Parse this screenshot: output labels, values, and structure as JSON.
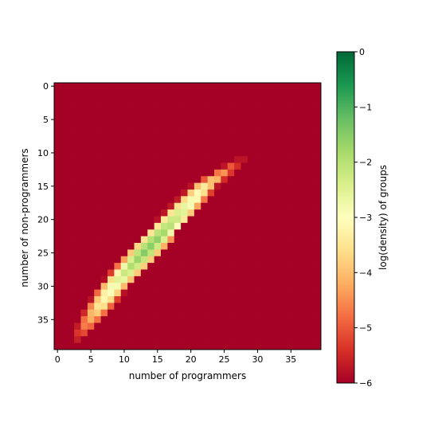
{
  "chart_data": {
    "type": "heatmap",
    "xlabel": "number of programmers",
    "ylabel": "number of non-programmers",
    "colorbar_label": "log(density) of groups",
    "xlim": [
      -0.5,
      39.5
    ],
    "ylim": [
      39.5,
      -0.5
    ],
    "y_inverted": true,
    "x_ticks": [
      0,
      5,
      10,
      15,
      20,
      25,
      30,
      35
    ],
    "y_ticks": [
      0,
      5,
      10,
      15,
      20,
      25,
      30,
      35
    ],
    "colorbar_range": [
      -6,
      0
    ],
    "colorbar_ticks": [
      0,
      -1,
      -2,
      -3,
      -4,
      -5,
      -6
    ],
    "colorbar_tick_labels": [
      "0",
      "−1",
      "−2",
      "−3",
      "−4",
      "−5",
      "−6"
    ],
    "colormap": "RdYlGn",
    "floor_value": -6,
    "ridge": {
      "description": "nonzero cells lie on band of rows y=11..38",
      "center_x_by_row": [
        [
          11,
          26.5
        ],
        [
          15,
          21.0
        ],
        [
          20,
          16.5
        ],
        [
          25,
          12.0
        ],
        [
          30,
          7.5
        ],
        [
          35,
          4.0
        ],
        [
          38,
          2.0
        ]
      ],
      "peak_value_by_row": [
        [
          11,
          -5.6
        ],
        [
          13,
          -4.4
        ],
        [
          15,
          -3.4
        ],
        [
          17,
          -2.8
        ],
        [
          20,
          -2.1
        ],
        [
          23,
          -1.6
        ],
        [
          25,
          -1.5
        ],
        [
          27,
          -1.9
        ],
        [
          30,
          -2.7
        ],
        [
          33,
          -3.4
        ],
        [
          36,
          -4.6
        ],
        [
          38,
          -5.6
        ]
      ],
      "peak_offset_x": 1.0,
      "decay_per_cell": 1.3,
      "cut_threshold": -5.9
    },
    "colors": {
      "background_cell": "#a50026",
      "colorbar_stops": [
        "#a50026",
        "#d73027",
        "#f46d43",
        "#fdae61",
        "#fee08b",
        "#ffffbf",
        "#d9ef8b",
        "#a6d96a",
        "#66bd63",
        "#1a9850",
        "#006837"
      ]
    }
  }
}
